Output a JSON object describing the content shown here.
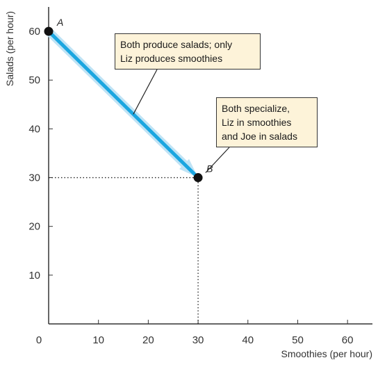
{
  "chart_data": {
    "type": "line",
    "title": "",
    "xlabel": "Smoothies (per hour)",
    "ylabel": "Salads (per hour)",
    "xlim": [
      0,
      65
    ],
    "ylim": [
      0,
      65
    ],
    "xticks": [
      0,
      10,
      20,
      30,
      40,
      50,
      60
    ],
    "yticks": [
      10,
      20,
      30,
      40,
      50,
      60
    ],
    "series": [
      {
        "x": [
          0,
          30
        ],
        "y": [
          60,
          30
        ],
        "style": "thick arrow",
        "color": "#1ba6e0"
      }
    ],
    "points": [
      {
        "label": "A",
        "x": 0,
        "y": 60
      },
      {
        "label": "B",
        "x": 30,
        "y": 30
      }
    ],
    "guides": [
      {
        "from": [
          0,
          30
        ],
        "to": [
          30,
          30
        ],
        "style": "dotted"
      },
      {
        "from": [
          30,
          0
        ],
        "to": [
          30,
          30
        ],
        "style": "dotted"
      }
    ],
    "annotations": [
      {
        "lines": [
          "Both produce salads; only",
          "Liz produces smoothies"
        ],
        "target": "line"
      },
      {
        "lines": [
          "Both  specialize,",
          "Liz in smoothies",
          "and Joe in salads"
        ],
        "target": "B"
      }
    ],
    "grid": false
  },
  "colors": {
    "line": "#1ba6e0",
    "line_glow": "#bfe3f5",
    "note_fill": "#fdf3d9",
    "axis": "#333333",
    "point": "#111111"
  }
}
